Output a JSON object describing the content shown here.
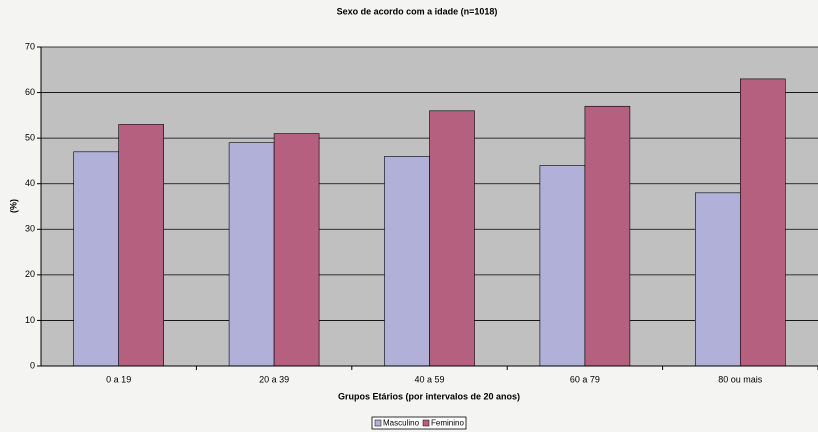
{
  "chart_data": {
    "type": "bar",
    "title": "Sexo de acordo com a idade (n=1018)",
    "x_label": "Grupos Etários (por intervalos de 20 anos)",
    "y_label": "(%)",
    "categories": [
      "0 a 19",
      "20 a 39",
      "40 a 59",
      "60 a 79",
      "80 ou mais"
    ],
    "series": [
      {
        "name": "Masculino",
        "color": "#b0b0d8",
        "values": [
          47,
          49,
          46,
          44,
          38
        ]
      },
      {
        "name": "Feminino",
        "color": "#b5607e",
        "values": [
          53,
          51,
          56,
          57,
          63
        ]
      }
    ],
    "ylim": [
      0,
      70
    ],
    "yticks": [
      0,
      10,
      20,
      30,
      40,
      50,
      60,
      70
    ],
    "grid": true,
    "legend": "bottom"
  }
}
